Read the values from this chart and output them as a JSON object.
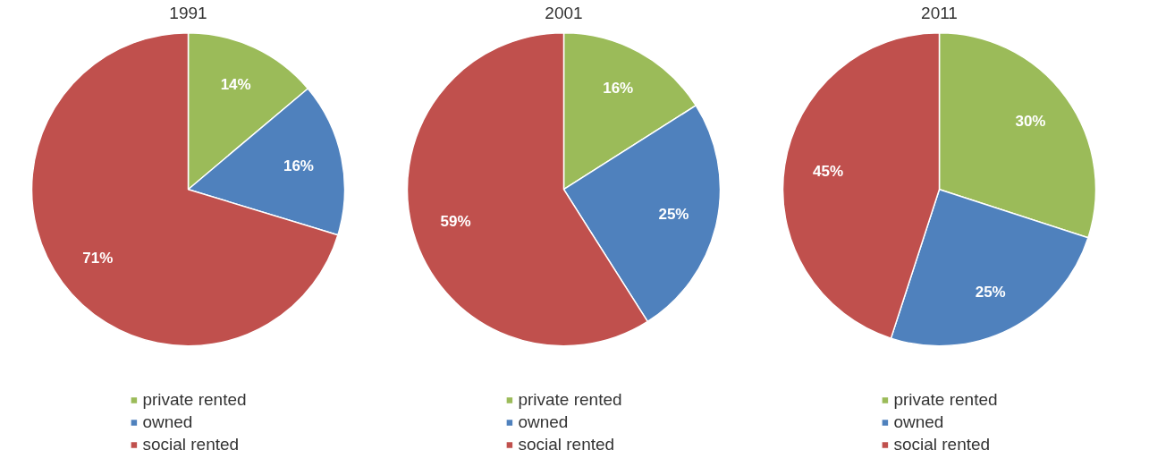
{
  "chart_data": [
    {
      "type": "pie",
      "title": "1991",
      "categories": [
        "private rented",
        "owned",
        "social rented"
      ],
      "values": [
        14,
        16,
        71
      ],
      "value_labels": [
        "14%",
        "16%",
        "71%"
      ],
      "colors": [
        "#9bbb59",
        "#4f81bd",
        "#c0504d"
      ],
      "legend": "bottom"
    },
    {
      "type": "pie",
      "title": "2001",
      "categories": [
        "private rented",
        "owned",
        "social rented"
      ],
      "values": [
        16,
        25,
        59
      ],
      "value_labels": [
        "16%",
        "25%",
        "59%"
      ],
      "colors": [
        "#9bbb59",
        "#4f81bd",
        "#c0504d"
      ],
      "legend": "bottom"
    },
    {
      "type": "pie",
      "title": "2011",
      "categories": [
        "private rented",
        "owned",
        "social rented"
      ],
      "values": [
        30,
        25,
        45
      ],
      "value_labels": [
        "30%",
        "25%",
        "45%"
      ],
      "colors": [
        "#9bbb59",
        "#4f81bd",
        "#c0504d"
      ],
      "legend": "bottom"
    }
  ]
}
